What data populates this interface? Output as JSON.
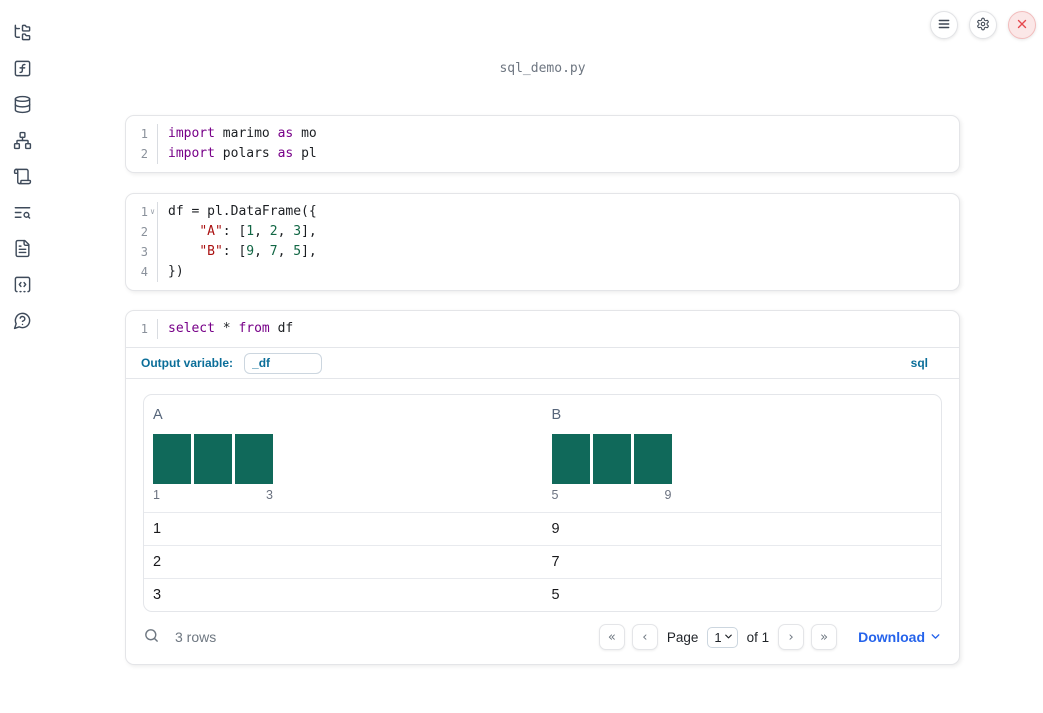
{
  "header": {
    "filename": "sql_demo.py"
  },
  "topbar": {
    "buttons": [
      {
        "icon": "menu-icon"
      },
      {
        "icon": "gear-icon"
      },
      {
        "icon": "close-icon"
      }
    ]
  },
  "sidebar": {
    "items": [
      {
        "icon": "file-tree-icon"
      },
      {
        "icon": "function-square-icon"
      },
      {
        "icon": "database-icon"
      },
      {
        "icon": "network-icon"
      },
      {
        "icon": "scroll-icon"
      },
      {
        "icon": "list-search-icon"
      },
      {
        "icon": "document-icon"
      },
      {
        "icon": "code-square-icon"
      },
      {
        "icon": "help-circle-icon"
      }
    ]
  },
  "cells": [
    {
      "type": "python",
      "lines": [
        {
          "number": "1",
          "tokens": [
            {
              "t": "import",
              "c": "kw"
            },
            {
              "t": " marimo ",
              "c": "pl"
            },
            {
              "t": "as",
              "c": "kw"
            },
            {
              "t": " mo",
              "c": "pl"
            }
          ]
        },
        {
          "number": "2",
          "tokens": [
            {
              "t": "import",
              "c": "kw"
            },
            {
              "t": " polars ",
              "c": "pl"
            },
            {
              "t": "as",
              "c": "kw"
            },
            {
              "t": " pl",
              "c": "pl"
            }
          ]
        }
      ]
    },
    {
      "type": "python",
      "lines": [
        {
          "number": "1",
          "fold": true,
          "tokens": [
            {
              "t": "df = pl.DataFrame({",
              "c": "pl"
            }
          ]
        },
        {
          "number": "2",
          "tokens": [
            {
              "t": "    ",
              "c": "pl"
            },
            {
              "t": "\"A\"",
              "c": "str"
            },
            {
              "t": ": [",
              "c": "pl"
            },
            {
              "t": "1",
              "c": "num"
            },
            {
              "t": ", ",
              "c": "pl"
            },
            {
              "t": "2",
              "c": "num"
            },
            {
              "t": ", ",
              "c": "pl"
            },
            {
              "t": "3",
              "c": "num"
            },
            {
              "t": "],",
              "c": "pl"
            }
          ]
        },
        {
          "number": "3",
          "tokens": [
            {
              "t": "    ",
              "c": "pl"
            },
            {
              "t": "\"B\"",
              "c": "str"
            },
            {
              "t": ": [",
              "c": "pl"
            },
            {
              "t": "9",
              "c": "num"
            },
            {
              "t": ", ",
              "c": "pl"
            },
            {
              "t": "7",
              "c": "num"
            },
            {
              "t": ", ",
              "c": "pl"
            },
            {
              "t": "5",
              "c": "num"
            },
            {
              "t": "],",
              "c": "pl"
            }
          ]
        },
        {
          "number": "4",
          "tokens": [
            {
              "t": "})",
              "c": "pl"
            }
          ]
        }
      ]
    },
    {
      "type": "sql",
      "lines": [
        {
          "number": "1",
          "tokens": [
            {
              "t": "select",
              "c": "kw"
            },
            {
              "t": " * ",
              "c": "pl"
            },
            {
              "t": "from",
              "c": "kw"
            },
            {
              "t": " df",
              "c": "pl"
            }
          ]
        }
      ],
      "output_variable_label": "Output variable:",
      "output_variable_value": "_df",
      "language_badge": "sql"
    }
  ],
  "table": {
    "columns": [
      {
        "name": "A",
        "hist": {
          "bars": [
            1,
            1,
            1
          ],
          "min_label": "1",
          "max_label": "3"
        }
      },
      {
        "name": "B",
        "hist": {
          "bars": [
            1,
            1,
            1
          ],
          "min_label": "5",
          "max_label": "9"
        }
      }
    ],
    "rows": [
      [
        "1",
        "9"
      ],
      [
        "2",
        "7"
      ],
      [
        "3",
        "5"
      ]
    ],
    "footer": {
      "row_count": "3 rows",
      "page_label": "Page",
      "page_value": "1",
      "of_label": "of 1",
      "download_label": "Download"
    }
  },
  "colors": {
    "histogram_bar": "#10695a",
    "code_keyword": "#770088",
    "code_string": "#aa1111",
    "code_number": "#116644",
    "accent_blue": "#0b6e99",
    "link_blue": "#2563eb",
    "close_red": "#e5484d"
  }
}
